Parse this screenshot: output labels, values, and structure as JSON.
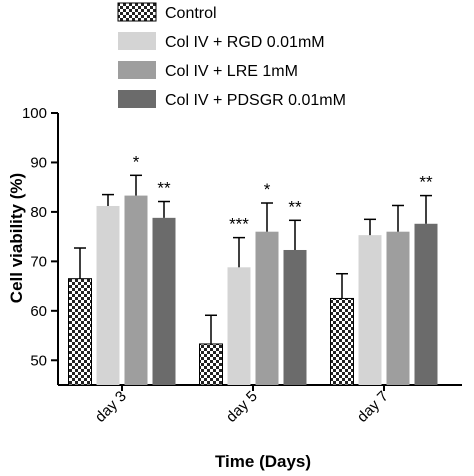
{
  "chart_data": {
    "type": "bar",
    "xlabel": "Time (Days)",
    "ylabel": "Cell viability (%)",
    "ylim": [
      45,
      100
    ],
    "yticks": [
      50,
      60,
      70,
      80,
      90,
      100
    ],
    "grid": false,
    "legend_position": "top",
    "categories": [
      "day 3",
      "day 5",
      "day 7"
    ],
    "series": [
      {
        "name": "Control",
        "color": "#ffffff",
        "pattern": "checkered",
        "values": [
          66.5,
          53.3,
          62.5
        ],
        "errors": [
          6.2,
          5.8,
          5.0
        ]
      },
      {
        "name": "Col IV + RGD 0.01mM",
        "color": "#d4d4d4",
        "values": [
          81.2,
          68.8,
          75.3
        ],
        "errors": [
          2.3,
          6.0,
          3.2
        ]
      },
      {
        "name": "Col IV + LRE 1mM",
        "color": "#9e9e9e",
        "values": [
          83.3,
          76.0,
          76.0
        ],
        "errors": [
          4.1,
          5.8,
          5.3
        ]
      },
      {
        "name": "Col IV + PDSGR 0.01mM",
        "color": "#6b6b6b",
        "values": [
          78.8,
          72.3,
          77.6
        ],
        "errors": [
          3.3,
          6.0,
          5.7
        ]
      }
    ],
    "annotations": [
      {
        "category": "day 3",
        "series": "Col IV + LRE 1mM",
        "text": "*"
      },
      {
        "category": "day 3",
        "series": "Col IV + PDSGR 0.01mM",
        "text": "**"
      },
      {
        "category": "day 5",
        "series": "Col IV + RGD 0.01mM",
        "text": "***"
      },
      {
        "category": "day 5",
        "series": "Col IV + LRE 1mM",
        "text": "*"
      },
      {
        "category": "day 5",
        "series": "Col IV + PDSGR 0.01mM",
        "text": "**"
      },
      {
        "category": "day 7",
        "series": "Col IV + PDSGR 0.01mM",
        "text": "**"
      }
    ]
  }
}
